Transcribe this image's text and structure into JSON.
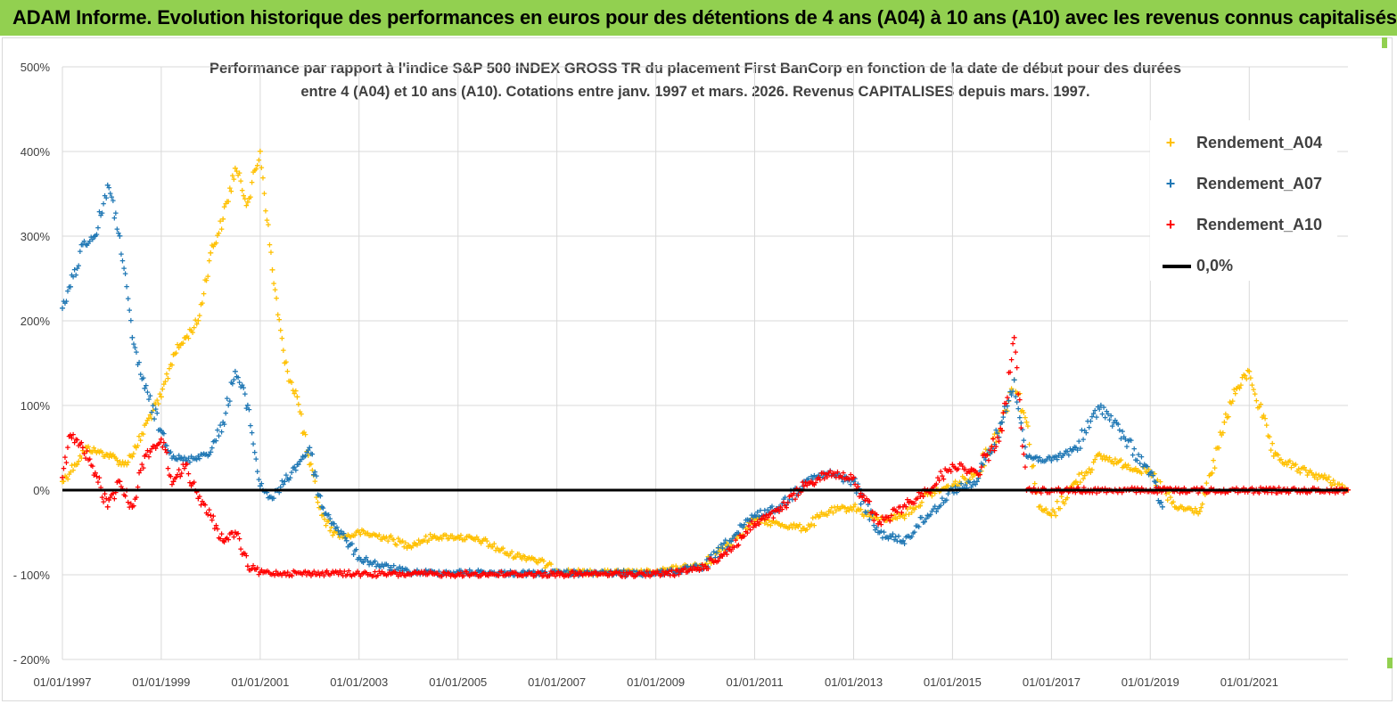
{
  "banner": {
    "title": "ADAM Informe. Evolution historique des performances en euros pour des détentions de 4 ans (A04) à 10 ans (A10) avec les revenus connus capitalisés"
  },
  "colors": {
    "banner_bg": "#92d050",
    "a04": "#ffc000",
    "a07": "#1f77b4",
    "a10": "#ff0000",
    "zero_line": "#000000",
    "grid": "#d9d9d9"
  },
  "chart_data": {
    "type": "scatter",
    "title_line1": "Performance par rapport à l'indice S&P 500 INDEX GROSS TR  du placement First BanCorp en fonction de la date de début pour des durées",
    "title_line2": "entre 4 (A04) et 10 ans (A10). Cotations entre janv. 1997 et mars. 2026. Revenus CAPITALISES depuis mars. 1997.",
    "xlabel": "",
    "ylabel": "",
    "xlim": [
      "1997-01-01",
      "2022-12-31"
    ],
    "ylim": [
      -200,
      500
    ],
    "y_ticks": [
      500,
      400,
      300,
      200,
      100,
      0,
      -100,
      -200
    ],
    "y_tick_labels": [
      "500%",
      "400%",
      "300%",
      "200%",
      "100%",
      "0%",
      "- 100%",
      "- 200%"
    ],
    "x_ticks": [
      "1997-01-01",
      "1999-01-01",
      "2001-01-01",
      "2003-01-01",
      "2005-01-01",
      "2007-01-01",
      "2009-01-01",
      "2011-01-01",
      "2013-01-01",
      "2015-01-01",
      "2017-01-01",
      "2019-01-01",
      "2021-01-01"
    ],
    "x_tick_labels": [
      "01/01/1997",
      "01/01/1999",
      "01/01/2001",
      "01/01/2003",
      "01/01/2005",
      "01/01/2007",
      "01/01/2009",
      "01/01/2011",
      "01/01/2013",
      "01/01/2015",
      "01/01/2017",
      "01/01/2019",
      "01/01/2021"
    ],
    "grid": "vertical and horizontal",
    "legend_position": "top-right",
    "legend": [
      "Rendement_A04",
      "Rendement_A07",
      "Rendement_A10",
      "0,0%"
    ],
    "series": [
      {
        "name": "Rendement_A04",
        "marker": "+",
        "x": [
          "1997-01-01",
          "1997-04-01",
          "1997-07-01",
          "1997-10-01",
          "1998-01-01",
          "1998-04-01",
          "1998-07-01",
          "1998-10-01",
          "1999-01-01",
          "1999-04-01",
          "1999-07-01",
          "1999-10-01",
          "2000-01-01",
          "2000-04-01",
          "2000-07-01",
          "2000-10-01",
          "2001-01-01",
          "2001-04-01",
          "2001-07-01",
          "2001-10-01",
          "2002-01-01",
          "2002-04-01",
          "2002-07-01",
          "2002-10-01",
          "2003-01-01",
          "2003-07-01",
          "2004-01-01",
          "2004-07-01",
          "2005-01-01",
          "2005-07-01",
          "2006-01-01",
          "2006-07-01",
          "2007-01-01",
          "2007-07-01",
          "2008-01-01",
          "2008-07-01",
          "2009-01-01",
          "2009-07-01",
          "2010-01-01",
          "2010-07-01",
          "2011-01-01",
          "2011-07-01",
          "2012-01-01",
          "2012-07-01",
          "2013-01-01",
          "2013-07-01",
          "2014-01-01",
          "2014-07-01",
          "2015-01-01",
          "2015-07-01",
          "2016-01-01",
          "2016-04-01",
          "2016-07-01",
          "2016-10-01",
          "2017-01-01",
          "2017-07-01",
          "2018-01-01",
          "2018-07-01",
          "2019-01-01",
          "2019-07-01",
          "2020-01-01",
          "2020-04-01",
          "2020-07-01",
          "2020-10-01",
          "2021-01-01",
          "2021-07-01",
          "2022-01-01",
          "2022-07-01",
          "2022-12-31"
        ],
        "values": [
          10,
          30,
          50,
          45,
          40,
          30,
          50,
          85,
          110,
          160,
          180,
          200,
          280,
          320,
          380,
          340,
          400,
          260,
          150,
          110,
          30,
          -30,
          -50,
          -55,
          -50,
          -55,
          -65,
          -55,
          -55,
          -60,
          -75,
          -80,
          -95,
          -97,
          -97,
          -97,
          -97,
          -92,
          -88,
          -60,
          -35,
          -40,
          -45,
          -25,
          -20,
          -35,
          -30,
          -5,
          5,
          20,
          80,
          130,
          80,
          -20,
          -30,
          10,
          40,
          30,
          20,
          -20,
          -25,
          20,
          80,
          120,
          140,
          40,
          25,
          15,
          0
        ]
      },
      {
        "name": "Rendement_A07",
        "marker": "+",
        "x": [
          "1997-01-01",
          "1997-03-01",
          "1997-06-01",
          "1997-09-01",
          "1997-12-01",
          "1998-03-01",
          "1998-06-01",
          "1998-09-01",
          "1999-01-01",
          "1999-04-01",
          "1999-07-01",
          "1999-10-01",
          "2000-01-01",
          "2000-04-01",
          "2000-07-01",
          "2000-10-01",
          "2001-01-01",
          "2001-04-01",
          "2001-07-01",
          "2001-10-01",
          "2002-01-01",
          "2002-04-01",
          "2002-07-01",
          "2002-10-01",
          "2003-01-01",
          "2003-07-01",
          "2004-01-01",
          "2004-07-01",
          "2005-01-01",
          "2005-07-01",
          "2006-01-01",
          "2006-07-01",
          "2007-01-01",
          "2007-07-01",
          "2008-01-01",
          "2008-07-01",
          "2009-01-01",
          "2009-07-01",
          "2010-01-01",
          "2010-07-01",
          "2011-01-01",
          "2011-07-01",
          "2012-01-01",
          "2012-07-01",
          "2013-01-01",
          "2013-07-01",
          "2014-01-01",
          "2014-07-01",
          "2015-01-01",
          "2015-07-01",
          "2016-01-01",
          "2016-04-01",
          "2016-07-01",
          "2017-01-01",
          "2017-07-01",
          "2018-01-01",
          "2018-07-01",
          "2019-01-01",
          "2019-04-01"
        ],
        "values": [
          215,
          240,
          290,
          300,
          360,
          300,
          180,
          120,
          70,
          40,
          35,
          40,
          45,
          80,
          140,
          100,
          5,
          -10,
          10,
          30,
          50,
          -20,
          -40,
          -60,
          -80,
          -90,
          -97,
          -97,
          -97,
          -97,
          -98,
          -98,
          -98,
          -98,
          -98,
          -98,
          -98,
          -95,
          -90,
          -60,
          -30,
          -20,
          10,
          20,
          10,
          -50,
          -60,
          -30,
          0,
          10,
          80,
          130,
          40,
          35,
          50,
          100,
          60,
          20,
          -20
        ]
      },
      {
        "name": "Rendement_A10",
        "marker": "+",
        "x": [
          "1997-01-01",
          "1997-03-01",
          "1997-06-01",
          "1997-09-01",
          "1997-12-01",
          "1998-03-01",
          "1998-06-01",
          "1998-09-01",
          "1999-01-01",
          "1999-04-01",
          "1999-07-01",
          "1999-10-01",
          "2000-01-01",
          "2000-04-01",
          "2000-07-01",
          "2000-10-01",
          "2001-01-01",
          "2001-07-01",
          "2002-01-01",
          "2002-07-01",
          "2003-01-01",
          "2003-07-01",
          "2004-01-01",
          "2004-07-01",
          "2005-01-01",
          "2005-07-01",
          "2006-01-01",
          "2006-07-01",
          "2007-01-01",
          "2007-07-01",
          "2008-01-01",
          "2008-07-01",
          "2009-01-01",
          "2009-07-01",
          "2010-01-01",
          "2010-07-01",
          "2011-01-01",
          "2011-07-01",
          "2012-01-01",
          "2012-07-01",
          "2013-01-01",
          "2013-07-01",
          "2014-01-01",
          "2014-07-01",
          "2015-01-01",
          "2015-07-01",
          "2016-01-01",
          "2016-04-01",
          "2016-07-01",
          "2017-01-01",
          "2018-01-01",
          "2019-01-01",
          "2020-01-01",
          "2021-01-01",
          "2022-01-01",
          "2022-12-31"
        ],
        "values": [
          15,
          65,
          50,
          20,
          -20,
          10,
          -20,
          40,
          60,
          10,
          30,
          -10,
          -30,
          -60,
          -50,
          -90,
          -97,
          -98,
          -98,
          -98,
          -99,
          -99,
          -99,
          -99,
          -99,
          -99,
          -99,
          -99,
          -99,
          -99,
          -99,
          -99,
          -99,
          -97,
          -90,
          -70,
          -40,
          -25,
          5,
          20,
          15,
          -40,
          -20,
          0,
          30,
          20,
          70,
          180,
          0,
          0,
          0,
          0,
          0,
          0,
          0,
          0
        ]
      }
    ],
    "reference_line": {
      "name": "0,0%",
      "y": 0
    }
  }
}
